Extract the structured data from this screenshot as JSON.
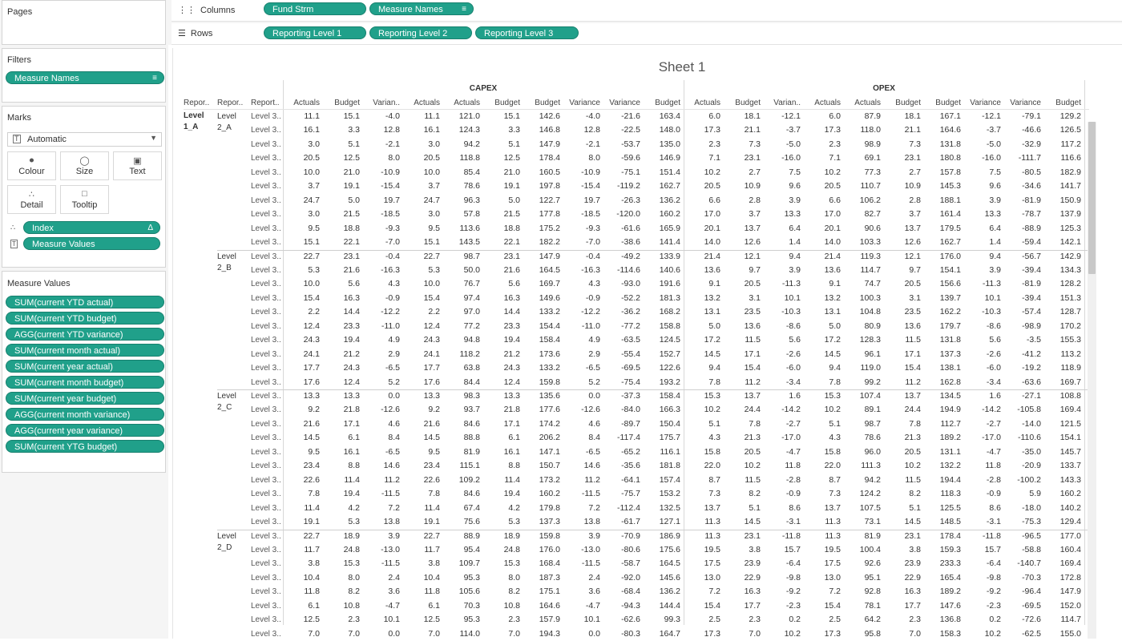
{
  "pages": {
    "title": "Pages"
  },
  "filters": {
    "title": "Filters",
    "items": [
      "Measure Names"
    ]
  },
  "marks": {
    "title": "Marks",
    "type": "Automatic",
    "buttons": [
      "Colour",
      "Size",
      "Text",
      "Detail",
      "Tooltip"
    ],
    "fields": [
      "Index",
      "Measure Values"
    ]
  },
  "measure_values": {
    "title": "Measure Values",
    "items": [
      "SUM(current YTD actual)",
      "SUM(current YTD budget)",
      "AGG(current YTD variance)",
      "SUM(current month actual)",
      "SUM(current year actual)",
      "SUM(current month budget)",
      "SUM(current year budget)",
      "AGG(current month variance)",
      "AGG(current year variance)",
      "SUM(current YTG budget)"
    ]
  },
  "shelves": {
    "columns_label": "Columns",
    "rows_label": "Rows",
    "columns": [
      "Fund Strm",
      "Measure Names"
    ],
    "rows": [
      "Reporting Level 1",
      "Reporting Level 2",
      "Reporting Level 3"
    ]
  },
  "sheet": {
    "title": "Sheet 1"
  },
  "table": {
    "groups": [
      "CAPEX",
      "OPEX"
    ],
    "row_headers": [
      "Repor..",
      "Repor..",
      "Report.."
    ],
    "col_headers": [
      "Actuals",
      "Budget",
      "Varian..",
      "Actuals",
      "Actuals",
      "Budget",
      "Budget",
      "Variance",
      "Variance",
      "Budget"
    ],
    "level1": "Level 1_A",
    "level3_label": "Level 3..",
    "blocks": [
      {
        "level2": "Level 2_A",
        "rows": [
          [
            "11.1",
            "15.1",
            "-4.0",
            "11.1",
            "121.0",
            "15.1",
            "142.6",
            "-4.0",
            "-21.6",
            "163.4",
            "6.0",
            "18.1",
            "-12.1",
            "6.0",
            "87.9",
            "18.1",
            "167.1",
            "-12.1",
            "-79.1",
            "129.2"
          ],
          [
            "16.1",
            "3.3",
            "12.8",
            "16.1",
            "124.3",
            "3.3",
            "146.8",
            "12.8",
            "-22.5",
            "148.0",
            "17.3",
            "21.1",
            "-3.7",
            "17.3",
            "118.0",
            "21.1",
            "164.6",
            "-3.7",
            "-46.6",
            "126.5"
          ],
          [
            "3.0",
            "5.1",
            "-2.1",
            "3.0",
            "94.2",
            "5.1",
            "147.9",
            "-2.1",
            "-53.7",
            "135.0",
            "2.3",
            "7.3",
            "-5.0",
            "2.3",
            "98.9",
            "7.3",
            "131.8",
            "-5.0",
            "-32.9",
            "117.2"
          ],
          [
            "20.5",
            "12.5",
            "8.0",
            "20.5",
            "118.8",
            "12.5",
            "178.4",
            "8.0",
            "-59.6",
            "146.9",
            "7.1",
            "23.1",
            "-16.0",
            "7.1",
            "69.1",
            "23.1",
            "180.8",
            "-16.0",
            "-111.7",
            "116.6"
          ],
          [
            "10.0",
            "21.0",
            "-10.9",
            "10.0",
            "85.4",
            "21.0",
            "160.5",
            "-10.9",
            "-75.1",
            "151.4",
            "10.2",
            "2.7",
            "7.5",
            "10.2",
            "77.3",
            "2.7",
            "157.8",
            "7.5",
            "-80.5",
            "182.9"
          ],
          [
            "3.7",
            "19.1",
            "-15.4",
            "3.7",
            "78.6",
            "19.1",
            "197.8",
            "-15.4",
            "-119.2",
            "162.7",
            "20.5",
            "10.9",
            "9.6",
            "20.5",
            "110.7",
            "10.9",
            "145.3",
            "9.6",
            "-34.6",
            "141.7"
          ],
          [
            "24.7",
            "5.0",
            "19.7",
            "24.7",
            "96.3",
            "5.0",
            "122.7",
            "19.7",
            "-26.3",
            "136.2",
            "6.6",
            "2.8",
            "3.9",
            "6.6",
            "106.2",
            "2.8",
            "188.1",
            "3.9",
            "-81.9",
            "150.9"
          ],
          [
            "3.0",
            "21.5",
            "-18.5",
            "3.0",
            "57.8",
            "21.5",
            "177.8",
            "-18.5",
            "-120.0",
            "160.2",
            "17.0",
            "3.7",
            "13.3",
            "17.0",
            "82.7",
            "3.7",
            "161.4",
            "13.3",
            "-78.7",
            "137.9"
          ],
          [
            "9.5",
            "18.8",
            "-9.3",
            "9.5",
            "113.6",
            "18.8",
            "175.2",
            "-9.3",
            "-61.6",
            "165.9",
            "20.1",
            "13.7",
            "6.4",
            "20.1",
            "90.6",
            "13.7",
            "179.5",
            "6.4",
            "-88.9",
            "125.3"
          ],
          [
            "15.1",
            "22.1",
            "-7.0",
            "15.1",
            "143.5",
            "22.1",
            "182.2",
            "-7.0",
            "-38.6",
            "141.4",
            "14.0",
            "12.6",
            "1.4",
            "14.0",
            "103.3",
            "12.6",
            "162.7",
            "1.4",
            "-59.4",
            "142.1"
          ]
        ]
      },
      {
        "level2": "Level 2_B",
        "rows": [
          [
            "22.7",
            "23.1",
            "-0.4",
            "22.7",
            "98.7",
            "23.1",
            "147.9",
            "-0.4",
            "-49.2",
            "133.9",
            "21.4",
            "12.1",
            "9.4",
            "21.4",
            "119.3",
            "12.1",
            "176.0",
            "9.4",
            "-56.7",
            "142.9"
          ],
          [
            "5.3",
            "21.6",
            "-16.3",
            "5.3",
            "50.0",
            "21.6",
            "164.5",
            "-16.3",
            "-114.6",
            "140.6",
            "13.6",
            "9.7",
            "3.9",
            "13.6",
            "114.7",
            "9.7",
            "154.1",
            "3.9",
            "-39.4",
            "134.3"
          ],
          [
            "10.0",
            "5.6",
            "4.3",
            "10.0",
            "76.7",
            "5.6",
            "169.7",
            "4.3",
            "-93.0",
            "191.6",
            "9.1",
            "20.5",
            "-11.3",
            "9.1",
            "74.7",
            "20.5",
            "156.6",
            "-11.3",
            "-81.9",
            "128.2"
          ],
          [
            "15.4",
            "16.3",
            "-0.9",
            "15.4",
            "97.4",
            "16.3",
            "149.6",
            "-0.9",
            "-52.2",
            "181.3",
            "13.2",
            "3.1",
            "10.1",
            "13.2",
            "100.3",
            "3.1",
            "139.7",
            "10.1",
            "-39.4",
            "151.3"
          ],
          [
            "2.2",
            "14.4",
            "-12.2",
            "2.2",
            "97.0",
            "14.4",
            "133.2",
            "-12.2",
            "-36.2",
            "168.2",
            "13.1",
            "23.5",
            "-10.3",
            "13.1",
            "104.8",
            "23.5",
            "162.2",
            "-10.3",
            "-57.4",
            "128.7"
          ],
          [
            "12.4",
            "23.3",
            "-11.0",
            "12.4",
            "77.2",
            "23.3",
            "154.4",
            "-11.0",
            "-77.2",
            "158.8",
            "5.0",
            "13.6",
            "-8.6",
            "5.0",
            "80.9",
            "13.6",
            "179.7",
            "-8.6",
            "-98.9",
            "170.2"
          ],
          [
            "24.3",
            "19.4",
            "4.9",
            "24.3",
            "94.8",
            "19.4",
            "158.4",
            "4.9",
            "-63.5",
            "124.5",
            "17.2",
            "11.5",
            "5.6",
            "17.2",
            "128.3",
            "11.5",
            "131.8",
            "5.6",
            "-3.5",
            "155.3"
          ],
          [
            "24.1",
            "21.2",
            "2.9",
            "24.1",
            "118.2",
            "21.2",
            "173.6",
            "2.9",
            "-55.4",
            "152.7",
            "14.5",
            "17.1",
            "-2.6",
            "14.5",
            "96.1",
            "17.1",
            "137.3",
            "-2.6",
            "-41.2",
            "113.2"
          ],
          [
            "17.7",
            "24.3",
            "-6.5",
            "17.7",
            "63.8",
            "24.3",
            "133.2",
            "-6.5",
            "-69.5",
            "122.6",
            "9.4",
            "15.4",
            "-6.0",
            "9.4",
            "119.0",
            "15.4",
            "138.1",
            "-6.0",
            "-19.2",
            "118.9"
          ],
          [
            "17.6",
            "12.4",
            "5.2",
            "17.6",
            "84.4",
            "12.4",
            "159.8",
            "5.2",
            "-75.4",
            "193.2",
            "7.8",
            "11.2",
            "-3.4",
            "7.8",
            "99.2",
            "11.2",
            "162.8",
            "-3.4",
            "-63.6",
            "169.7"
          ]
        ]
      },
      {
        "level2": "Level 2_C",
        "rows": [
          [
            "13.3",
            "13.3",
            "0.0",
            "13.3",
            "98.3",
            "13.3",
            "135.6",
            "0.0",
            "-37.3",
            "158.4",
            "15.3",
            "13.7",
            "1.6",
            "15.3",
            "107.4",
            "13.7",
            "134.5",
            "1.6",
            "-27.1",
            "108.8"
          ],
          [
            "9.2",
            "21.8",
            "-12.6",
            "9.2",
            "93.7",
            "21.8",
            "177.6",
            "-12.6",
            "-84.0",
            "166.3",
            "10.2",
            "24.4",
            "-14.2",
            "10.2",
            "89.1",
            "24.4",
            "194.9",
            "-14.2",
            "-105.8",
            "169.4"
          ],
          [
            "21.6",
            "17.1",
            "4.6",
            "21.6",
            "84.6",
            "17.1",
            "174.2",
            "4.6",
            "-89.7",
            "150.4",
            "5.1",
            "7.8",
            "-2.7",
            "5.1",
            "98.7",
            "7.8",
            "112.7",
            "-2.7",
            "-14.0",
            "121.5"
          ],
          [
            "14.5",
            "6.1",
            "8.4",
            "14.5",
            "88.8",
            "6.1",
            "206.2",
            "8.4",
            "-117.4",
            "175.7",
            "4.3",
            "21.3",
            "-17.0",
            "4.3",
            "78.6",
            "21.3",
            "189.2",
            "-17.0",
            "-110.6",
            "154.1"
          ],
          [
            "9.5",
            "16.1",
            "-6.5",
            "9.5",
            "81.9",
            "16.1",
            "147.1",
            "-6.5",
            "-65.2",
            "116.1",
            "15.8",
            "20.5",
            "-4.7",
            "15.8",
            "96.0",
            "20.5",
            "131.1",
            "-4.7",
            "-35.0",
            "145.7"
          ],
          [
            "23.4",
            "8.8",
            "14.6",
            "23.4",
            "115.1",
            "8.8",
            "150.7",
            "14.6",
            "-35.6",
            "181.8",
            "22.0",
            "10.2",
            "11.8",
            "22.0",
            "111.3",
            "10.2",
            "132.2",
            "11.8",
            "-20.9",
            "133.7"
          ],
          [
            "22.6",
            "11.4",
            "11.2",
            "22.6",
            "109.2",
            "11.4",
            "173.2",
            "11.2",
            "-64.1",
            "157.4",
            "8.7",
            "11.5",
            "-2.8",
            "8.7",
            "94.2",
            "11.5",
            "194.4",
            "-2.8",
            "-100.2",
            "143.3"
          ],
          [
            "7.8",
            "19.4",
            "-11.5",
            "7.8",
            "84.6",
            "19.4",
            "160.2",
            "-11.5",
            "-75.7",
            "153.2",
            "7.3",
            "8.2",
            "-0.9",
            "7.3",
            "124.2",
            "8.2",
            "118.3",
            "-0.9",
            "5.9",
            "160.2"
          ],
          [
            "11.4",
            "4.2",
            "7.2",
            "11.4",
            "67.4",
            "4.2",
            "179.8",
            "7.2",
            "-112.4",
            "132.5",
            "13.7",
            "5.1",
            "8.6",
            "13.7",
            "107.5",
            "5.1",
            "125.5",
            "8.6",
            "-18.0",
            "140.2"
          ],
          [
            "19.1",
            "5.3",
            "13.8",
            "19.1",
            "75.6",
            "5.3",
            "137.3",
            "13.8",
            "-61.7",
            "127.1",
            "11.3",
            "14.5",
            "-3.1",
            "11.3",
            "73.1",
            "14.5",
            "148.5",
            "-3.1",
            "-75.3",
            "129.4"
          ]
        ]
      },
      {
        "level2": "Level 2_D",
        "rows": [
          [
            "22.7",
            "18.9",
            "3.9",
            "22.7",
            "88.9",
            "18.9",
            "159.8",
            "3.9",
            "-70.9",
            "186.9",
            "11.3",
            "23.1",
            "-11.8",
            "11.3",
            "81.9",
            "23.1",
            "178.4",
            "-11.8",
            "-96.5",
            "177.0"
          ],
          [
            "11.7",
            "24.8",
            "-13.0",
            "11.7",
            "95.4",
            "24.8",
            "176.0",
            "-13.0",
            "-80.6",
            "175.6",
            "19.5",
            "3.8",
            "15.7",
            "19.5",
            "100.4",
            "3.8",
            "159.3",
            "15.7",
            "-58.8",
            "160.4"
          ],
          [
            "3.8",
            "15.3",
            "-11.5",
            "3.8",
            "109.7",
            "15.3",
            "168.4",
            "-11.5",
            "-58.7",
            "164.5",
            "17.5",
            "23.9",
            "-6.4",
            "17.5",
            "92.6",
            "23.9",
            "233.3",
            "-6.4",
            "-140.7",
            "169.4"
          ],
          [
            "10.4",
            "8.0",
            "2.4",
            "10.4",
            "95.3",
            "8.0",
            "187.3",
            "2.4",
            "-92.0",
            "145.6",
            "13.0",
            "22.9",
            "-9.8",
            "13.0",
            "95.1",
            "22.9",
            "165.4",
            "-9.8",
            "-70.3",
            "172.8"
          ],
          [
            "11.8",
            "8.2",
            "3.6",
            "11.8",
            "105.6",
            "8.2",
            "175.1",
            "3.6",
            "-68.4",
            "136.2",
            "7.2",
            "16.3",
            "-9.2",
            "7.2",
            "92.8",
            "16.3",
            "189.2",
            "-9.2",
            "-96.4",
            "147.9"
          ],
          [
            "6.1",
            "10.8",
            "-4.7",
            "6.1",
            "70.3",
            "10.8",
            "164.6",
            "-4.7",
            "-94.3",
            "144.4",
            "15.4",
            "17.7",
            "-2.3",
            "15.4",
            "78.1",
            "17.7",
            "147.6",
            "-2.3",
            "-69.5",
            "152.0"
          ],
          [
            "12.5",
            "2.3",
            "10.1",
            "12.5",
            "95.3",
            "2.3",
            "157.9",
            "10.1",
            "-62.6",
            "99.3",
            "2.5",
            "2.3",
            "0.2",
            "2.5",
            "64.2",
            "2.3",
            "136.8",
            "0.2",
            "-72.6",
            "114.7"
          ],
          [
            "7.0",
            "7.0",
            "0.0",
            "7.0",
            "114.0",
            "7.0",
            "194.3",
            "0.0",
            "-80.3",
            "164.7",
            "17.3",
            "7.0",
            "10.2",
            "17.3",
            "95.8",
            "7.0",
            "158.3",
            "10.2",
            "-62.5",
            "155.0"
          ]
        ]
      }
    ]
  }
}
